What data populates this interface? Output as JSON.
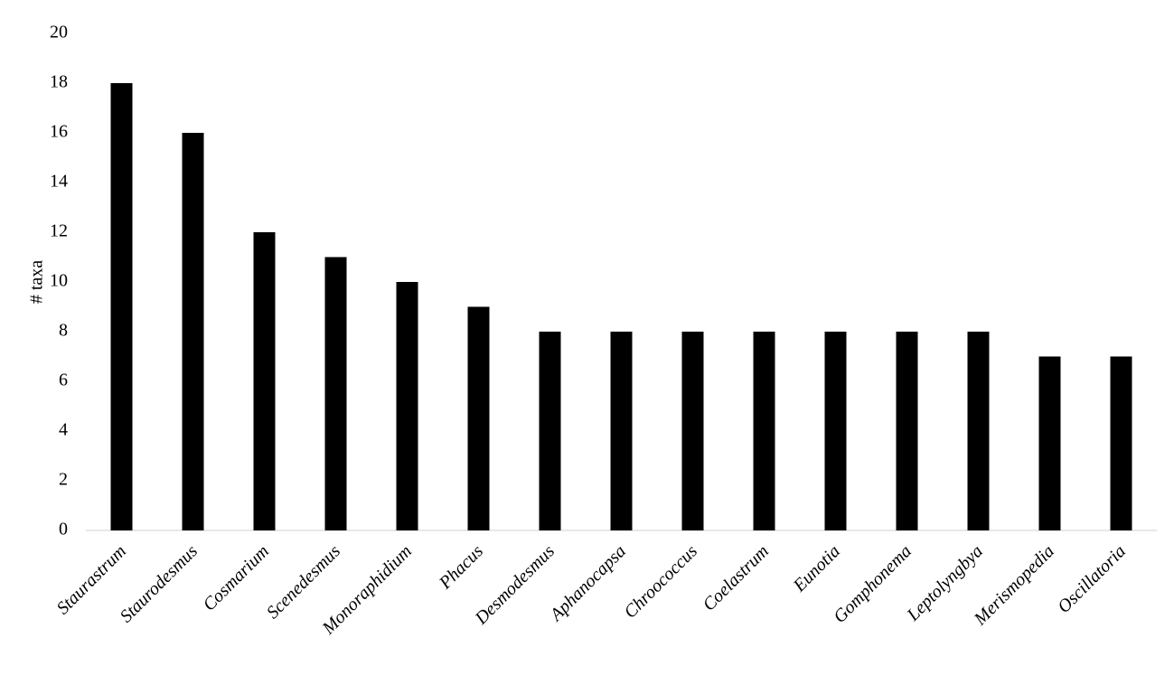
{
  "chart_data": {
    "type": "bar",
    "y_label": "# taxa",
    "categories": [
      "Staurastrum",
      "Staurodesmus",
      "Cosmarium",
      "Scenedesmus",
      "Monoraphidium",
      "Phacus",
      "Desmodesmus",
      "Aphanocapsa",
      "Chroococcus",
      "Coelastrum",
      "Eunotia",
      "Gomphonema",
      "Leptolyngbya",
      "Merismopedia",
      "Oscillatoria"
    ],
    "values": [
      18,
      16,
      12,
      11,
      10,
      9,
      8,
      8,
      8,
      8,
      8,
      8,
      8,
      7,
      7
    ],
    "color": "#000000",
    "ylim": [
      0,
      20
    ],
    "yticks": [
      0,
      2,
      4,
      6,
      8,
      10,
      12,
      14,
      16,
      18,
      20
    ],
    "grid": false
  }
}
